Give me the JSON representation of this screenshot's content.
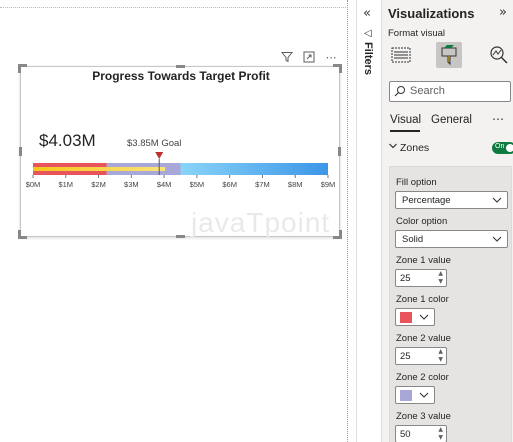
{
  "canvas": {
    "toolbar": {
      "filter_icon": "filter-icon",
      "focus_icon": "focus-mode-icon",
      "more_icon": "more-options-icon",
      "more_label": "⋯"
    },
    "watermark": "javaTpoint"
  },
  "chart_data": {
    "type": "bullet",
    "title": "Progress Towards Target Profit",
    "value": 4.03,
    "value_label": "$4.03M",
    "goal": 3.85,
    "goal_label": "$3.85M Goal",
    "xlim": [
      0,
      9
    ],
    "ticks": [
      "$0M",
      "$1M",
      "$2M",
      "$3M",
      "$4M",
      "$5M",
      "$6M",
      "$7M",
      "$8M",
      "$9M"
    ],
    "tick_values": [
      0,
      1,
      2,
      3,
      4,
      5,
      6,
      7,
      8,
      9
    ],
    "zones": [
      {
        "from": 0,
        "to": 2.25,
        "color": "#e8545c"
      },
      {
        "from": 2.25,
        "to": 4.5,
        "color": "#a8a8d8"
      },
      {
        "from": 4.5,
        "to": 9,
        "color": "#5ab3ee"
      }
    ],
    "colors": {
      "progress_start": "#f5c518",
      "progress_end": "#fbe37a",
      "goal_marker": "#b8312f",
      "zone_right_start": "#8ad4f8",
      "zone_right_end": "#3c96e8"
    }
  },
  "filters_pane": {
    "label": "Filters",
    "collapse_glyph": "«",
    "funnel_glyph": "◁"
  },
  "viz_pane": {
    "title": "Visualizations",
    "expand_glyph": "»",
    "subtitle": "Format visual",
    "search_placeholder": "Search",
    "tabs": {
      "visual": "Visual",
      "general": "General",
      "more": "⋯"
    },
    "zones_section": {
      "label": "Zones",
      "toggle": "On",
      "fill_option_label": "Fill option",
      "fill_option_value": "Percentage",
      "color_option_label": "Color option",
      "color_option_value": "Solid",
      "zone1_value_label": "Zone 1 value",
      "zone1_value": "25",
      "zone1_color_label": "Zone 1 color",
      "zone1_color": "#e8545c",
      "zone2_value_label": "Zone 2 value",
      "zone2_value": "25",
      "zone2_color_label": "Zone 2 color",
      "zone2_color": "#a8a8d8",
      "zone3_value_label": "Zone 3 value",
      "zone3_value": "50"
    }
  }
}
